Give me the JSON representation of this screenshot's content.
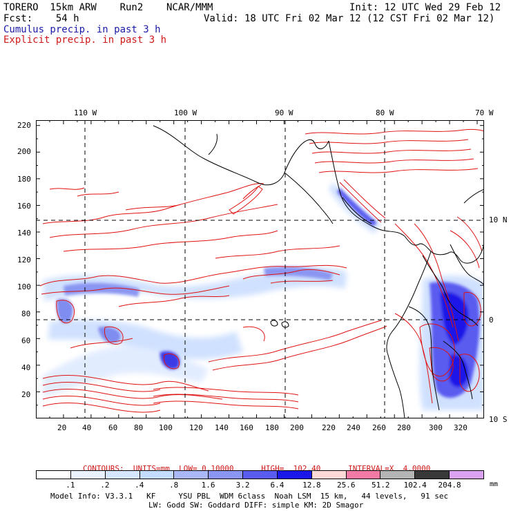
{
  "header": {
    "line1_left": "TORERO  15km ARW    Run2    NCAR/MMM",
    "line1_right": "Init: 12 UTC Wed 29 Feb 12",
    "line2_left": "Fcst:    54 h",
    "line2_right": "Valid: 18 UTC Fri 02 Mar 12 (12 CST Fri 02 Mar 12)",
    "line3": "Cumulus precip. in past 3 h",
    "line4": "Explicit precip. in past 3 h"
  },
  "map": {
    "top_lon_labels": [
      "110 W",
      "100 W",
      "90 W",
      "80 W",
      "70 W"
    ],
    "right_lat_labels": [
      "10 N",
      "0",
      "10 S"
    ],
    "y_ticks": [
      "220",
      "200",
      "180",
      "160",
      "140",
      "120",
      "100",
      "80",
      "60",
      "40",
      "20"
    ],
    "x_ticks": [
      "20",
      "40",
      "60",
      "80",
      "100",
      "120",
      "140",
      "160",
      "180",
      "200",
      "220",
      "240",
      "260",
      "280",
      "300",
      "320"
    ],
    "colors": {
      "cumulus_light": "#c8dcff",
      "cumulus_mid": "#7f8cf0",
      "cumulus_dark": "#1010e0",
      "explicit_contour": "#e01010",
      "coast": "#000000"
    }
  },
  "contour_info": "CONTOURS:  UNITS=mm  LOW= 0.10000      HIGH=  102.40      INTERVAL=X  4.0000",
  "legend": {
    "labels": [
      ".1",
      ".2",
      ".4",
      ".8",
      "1.6",
      "3.2",
      "6.4",
      "12.8",
      "25.6",
      "51.2",
      "102.4",
      "204.8"
    ],
    "units": "mm",
    "colors": [
      "#ffffff",
      "#eaf2ff",
      "#d6e6ff",
      "#c4dcff",
      "#aab8f8",
      "#8a96f2",
      "#5a5cf0",
      "#1a18e8",
      "#ffd8d8",
      "#f27aa4",
      "#b4b4b4",
      "#383838",
      "#dca2f2"
    ]
  },
  "footer": {
    "line1": "Model Info: V3.3.1   KF     YSU PBL  WDM 6class  Noah LSM  15 km,   44 levels,   91 sec",
    "line2": "LW: Godd SW: Goddard DIFF: simple KM: 2D Smagor"
  }
}
